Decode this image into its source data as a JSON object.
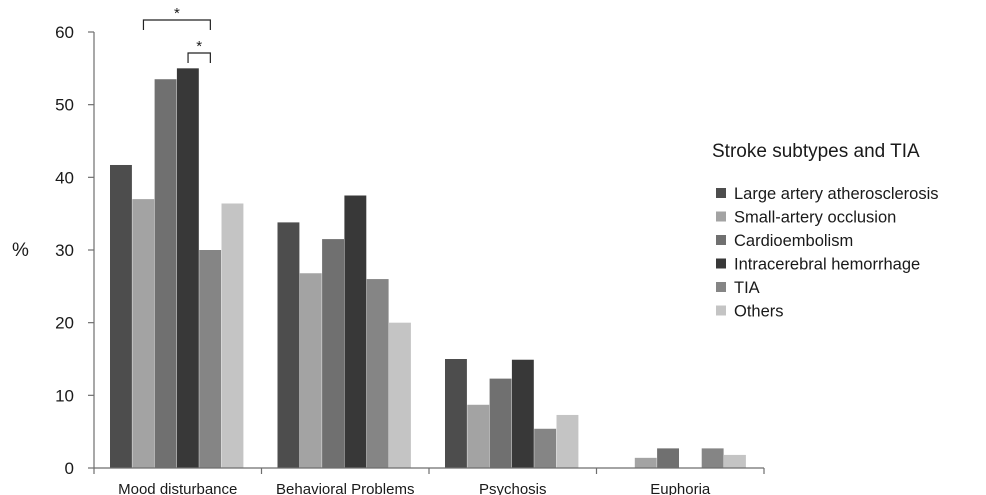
{
  "chart_data": {
    "type": "bar",
    "ylabel": "%",
    "ylim": [
      0,
      60
    ],
    "yticks": [
      0,
      10,
      20,
      30,
      40,
      50,
      60
    ],
    "grid": false,
    "legend_position": "right",
    "legend_title": "Stroke subtypes and TIA",
    "categories": [
      "Mood disturbance",
      "Behavioral Problems",
      "Psychosis",
      "Euphoria"
    ],
    "series": [
      {
        "name": "Large artery atherosclerosis",
        "color": "#4d4d4d",
        "values": [
          41.7,
          33.8,
          15.0,
          0
        ]
      },
      {
        "name": "Small-artery occlusion",
        "color": "#a3a3a3",
        "values": [
          37.0,
          26.8,
          8.7,
          1.4
        ]
      },
      {
        "name": "Cardioembolism",
        "color": "#707070",
        "values": [
          53.5,
          31.5,
          12.3,
          2.7
        ]
      },
      {
        "name": "Intracerebral hemorrhage",
        "color": "#383838",
        "values": [
          55.0,
          37.5,
          14.9,
          0
        ]
      },
      {
        "name": "TIA",
        "color": "#858585",
        "values": [
          30.0,
          26.0,
          5.4,
          2.7
        ]
      },
      {
        "name": "Others",
        "color": "#c4c4c4",
        "values": [
          36.4,
          20.0,
          7.3,
          1.8
        ]
      }
    ],
    "annotations": [
      {
        "text": "*",
        "category": "Mood disturbance",
        "from_series": "Small-artery occlusion",
        "to_series": "TIA"
      },
      {
        "text": "*",
        "category": "Mood disturbance",
        "from_series": "Intracerebral hemorrhage",
        "to_series": "TIA"
      }
    ]
  }
}
